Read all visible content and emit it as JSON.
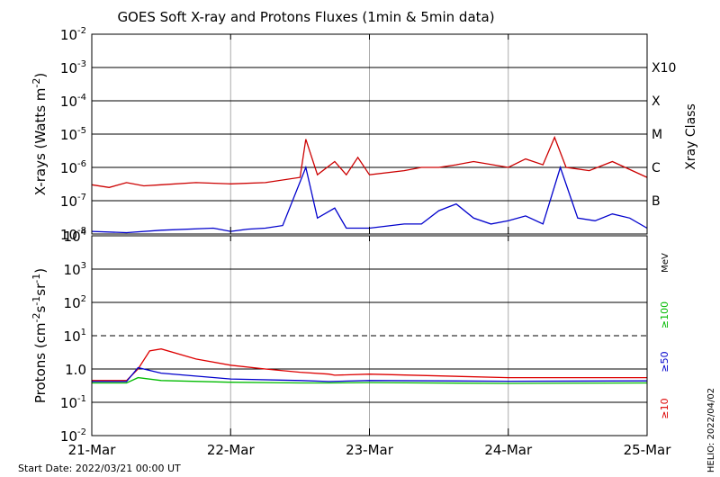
{
  "chart_data": [
    {
      "type": "line",
      "title": "GOES Soft X-ray and Protons Fluxes   (1min & 5min data)",
      "ylabel_main": "X-rays (Watts m",
      "ylabel_sup": "-2",
      "ylabel_close": ")",
      "yscale": "log",
      "ylim": [
        1e-08,
        0.01
      ],
      "ytick_labels": [
        {
          "base": "10",
          "exp": "-8",
          "value": 1e-08
        },
        {
          "base": "10",
          "exp": "-7",
          "value": 1e-07
        },
        {
          "base": "10",
          "exp": "-6",
          "value": 1e-06
        },
        {
          "base": "10",
          "exp": "-5",
          "value": 1e-05
        },
        {
          "base": "10",
          "exp": "-4",
          "value": 0.0001
        },
        {
          "base": "10",
          "exp": "-3",
          "value": 0.001
        },
        {
          "base": "10",
          "exp": "-2",
          "value": 0.01
        }
      ],
      "right_axis_title": "Xray Class",
      "class_labels": [
        {
          "label": "B",
          "value": 1e-07
        },
        {
          "label": "C",
          "value": 1e-06
        },
        {
          "label": "M",
          "value": 1e-05
        },
        {
          "label": "X",
          "value": 0.0001
        },
        {
          "label": "X10",
          "value": 0.001
        }
      ],
      "series": [
        {
          "color": "#cc0000",
          "x": [
            "2022-03-21 00:00",
            "2022-03-21 03:00",
            "2022-03-21 06:00",
            "2022-03-21 09:00",
            "2022-03-21 12:00",
            "2022-03-21 18:00",
            "2022-03-22 00:00",
            "2022-03-22 06:00",
            "2022-03-22 12:00",
            "2022-03-22 13:00",
            "2022-03-22 15:00",
            "2022-03-22 18:00",
            "2022-03-22 20:00",
            "2022-03-22 22:00",
            "2022-03-23 00:00",
            "2022-03-23 06:00",
            "2022-03-23 09:00",
            "2022-03-23 12:00",
            "2022-03-23 15:00",
            "2022-03-23 18:00",
            "2022-03-24 00:00",
            "2022-03-24 03:00",
            "2022-03-24 06:00",
            "2022-03-24 08:00",
            "2022-03-24 10:00",
            "2022-03-24 14:00",
            "2022-03-24 18:00",
            "2022-03-25 00:00"
          ],
          "values": [
            3e-07,
            2.5e-07,
            3.5e-07,
            2.8e-07,
            3e-07,
            3.5e-07,
            3.2e-07,
            3.5e-07,
            5e-07,
            7e-06,
            6e-07,
            1.5e-06,
            6e-07,
            2e-06,
            6e-07,
            8e-07,
            1e-06,
            1e-06,
            1.2e-06,
            1.5e-06,
            1e-06,
            1.8e-06,
            1.2e-06,
            8e-06,
            1e-06,
            8e-07,
            1.5e-06,
            5e-07
          ]
        },
        {
          "color": "#0000cc",
          "x": [
            "2022-03-21 00:00",
            "2022-03-21 06:00",
            "2022-03-21 12:00",
            "2022-03-21 21:00",
            "2022-03-22 00:00",
            "2022-03-22 03:00",
            "2022-03-22 06:00",
            "2022-03-22 09:00",
            "2022-03-22 13:00",
            "2022-03-22 15:00",
            "2022-03-22 18:00",
            "2022-03-22 20:00",
            "2022-03-23 00:00",
            "2022-03-23 06:00",
            "2022-03-23 09:00",
            "2022-03-23 12:00",
            "2022-03-23 15:00",
            "2022-03-23 18:00",
            "2022-03-23 21:00",
            "2022-03-24 00:00",
            "2022-03-24 03:00",
            "2022-03-24 06:00",
            "2022-03-24 09:00",
            "2022-03-24 12:00",
            "2022-03-24 15:00",
            "2022-03-24 18:00",
            "2022-03-24 21:00",
            "2022-03-25 00:00"
          ],
          "values": [
            1.2e-08,
            1.1e-08,
            1.3e-08,
            1.5e-08,
            1.2e-08,
            1.4e-08,
            1.5e-08,
            1.8e-08,
            1e-06,
            3e-08,
            6e-08,
            1.5e-08,
            1.5e-08,
            2e-08,
            2e-08,
            5e-08,
            8e-08,
            3e-08,
            2e-08,
            2.5e-08,
            3.5e-08,
            2e-08,
            1e-06,
            3e-08,
            2.5e-08,
            4e-08,
            3e-08,
            1.5e-08
          ]
        }
      ]
    },
    {
      "type": "line",
      "ylabel_main": "Protons (cm",
      "ylabel_sup1": "-2",
      "ylabel_mid1": "s",
      "ylabel_sup2": "-1",
      "ylabel_mid2": "sr",
      "ylabel_sup3": "-1",
      "ylabel_close": ")",
      "yscale": "log",
      "ylim": [
        0.01,
        10000
      ],
      "ytick_labels": [
        {
          "base": "10",
          "exp": "-2",
          "value": 0.01
        },
        {
          "base": "10",
          "exp": "-1",
          "value": 0.1
        },
        {
          "text": "1.0",
          "value": 1
        },
        {
          "base": "10",
          "exp": "1",
          "value": 10
        },
        {
          "base": "10",
          "exp": "2",
          "value": 100
        },
        {
          "base": "10",
          "exp": "3",
          "value": 1000
        },
        {
          "base": "10",
          "exp": "4",
          "value": 10000
        }
      ],
      "threshold": 10,
      "right_unit": "MeV",
      "legend": [
        {
          "label": "≥100",
          "color": "#00bb00"
        },
        {
          "label": "≥50",
          "color": "#0000cc"
        },
        {
          "label": "≥10",
          "color": "#dd0000"
        }
      ],
      "series": [
        {
          "name": "≥10",
          "color": "#dd0000",
          "x": [
            "2022-03-21 00:00",
            "2022-03-21 06:00",
            "2022-03-21 08:00",
            "2022-03-21 10:00",
            "2022-03-21 12:00",
            "2022-03-21 18:00",
            "2022-03-22 00:00",
            "2022-03-22 06:00",
            "2022-03-22 12:00",
            "2022-03-22 17:00",
            "2022-03-22 18:00",
            "2022-03-23 00:00",
            "2022-03-24 00:00",
            "2022-03-25 00:00"
          ],
          "values": [
            0.45,
            0.45,
            1,
            3.5,
            4,
            2,
            1.3,
            1,
            0.8,
            0.7,
            0.65,
            0.7,
            0.55,
            0.55
          ]
        },
        {
          "name": "≥50",
          "color": "#0000cc",
          "x": [
            "2022-03-21 00:00",
            "2022-03-21 06:00",
            "2022-03-21 08:00",
            "2022-03-21 12:00",
            "2022-03-22 00:00",
            "2022-03-22 12:00",
            "2022-03-22 17:00",
            "2022-03-23 00:00",
            "2022-03-24 00:00",
            "2022-03-25 00:00"
          ],
          "values": [
            0.42,
            0.42,
            1.1,
            0.75,
            0.5,
            0.45,
            0.42,
            0.45,
            0.43,
            0.44
          ]
        },
        {
          "name": "≥100",
          "color": "#00bb00",
          "x": [
            "2022-03-21 00:00",
            "2022-03-21 06:00",
            "2022-03-21 08:00",
            "2022-03-21 12:00",
            "2022-03-22 00:00",
            "2022-03-22 12:00",
            "2022-03-22 17:00",
            "2022-03-23 00:00",
            "2022-03-24 00:00",
            "2022-03-25 00:00"
          ],
          "values": [
            0.38,
            0.38,
            0.55,
            0.45,
            0.4,
            0.38,
            0.38,
            0.39,
            0.37,
            0.38
          ]
        }
      ]
    }
  ],
  "x_ticks": [
    "21-Mar",
    "22-Mar",
    "23-Mar",
    "24-Mar",
    "25-Mar"
  ],
  "start_date": "Start Date: 2022/03/21 00:00 UT",
  "credit": "HELIO: 2022/04/02"
}
